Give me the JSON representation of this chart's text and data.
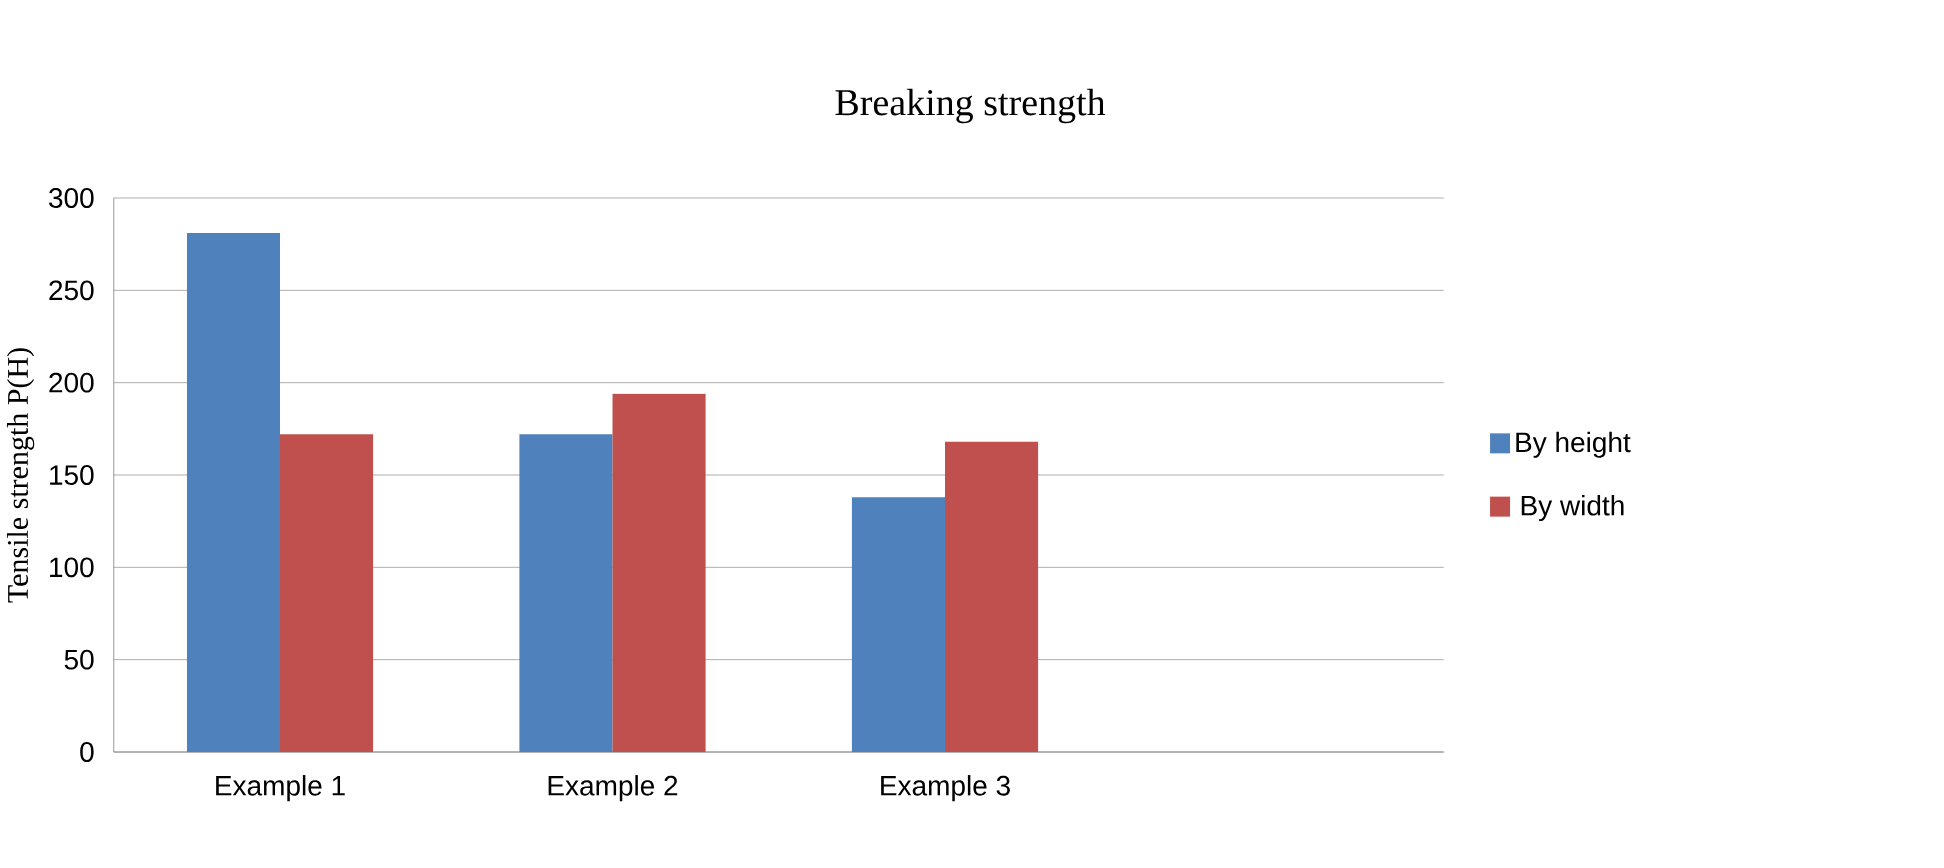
{
  "chart_data": {
    "type": "bar",
    "title": "Breaking strength",
    "ylabel": "Tensile strength P(H)",
    "categories": [
      "Example 1",
      "Example 2",
      "Example 3",
      null
    ],
    "series": [
      {
        "name": "By height",
        "color": "#4f81bd",
        "values": [
          281,
          172,
          138,
          null
        ]
      },
      {
        "name": "By width",
        "color": "#c0504d",
        "values": [
          172,
          194,
          168,
          null
        ]
      }
    ],
    "ylim": [
      0,
      300
    ],
    "yticks": [
      0,
      50,
      100,
      150,
      200,
      250,
      300
    ],
    "grid": "y",
    "legend": "right"
  }
}
